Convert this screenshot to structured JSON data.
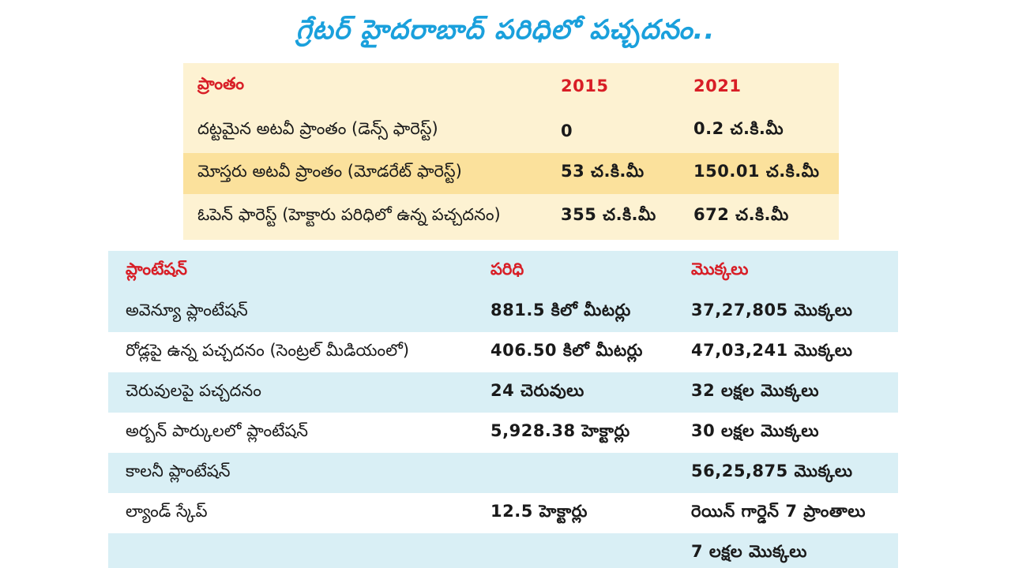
{
  "title": "గ్రేటర్ హైదరాబాద్ పరిధిలో పచ్చదనం..",
  "forest_table": {
    "headers": [
      "ప్రాంతం",
      "2015",
      "2021"
    ],
    "rows": [
      [
        "దట్టమైన అటవీ ప్రాంతం (డెన్స్ ఫారెస్ట్)",
        "0",
        "0.2 చ.కి.మీ"
      ],
      [
        "మోస్తరు అటవీ ప్రాంతం (మోడరేట్ ఫారెస్ట్)",
        "53 చ.కి.మీ",
        "150.01 చ.కి.మీ"
      ],
      [
        "ఓపెన్ ఫారెస్ట్ (హెక్టారు పరిధిలో ఉన్న పచ్చదనం)",
        "355 చ.కి.మీ",
        "672 చ.కి.మీ"
      ]
    ]
  },
  "plantation_table": {
    "headers": [
      "ప్లాంటేషన్",
      "పరిధి",
      "మొక్కలు"
    ],
    "rows": [
      [
        "అవెన్యూ ప్లాంటేషన్",
        "881.5 కిలో మీటర్లు",
        "37,27,805 మొక్కలు"
      ],
      [
        "రోడ్లపై ఉన్న పచ్చదనం (సెంట్రల్ మీడియంలో)",
        "406.50 కిలో మీటర్లు",
        "47,03,241 మొక్కలు"
      ],
      [
        "చెరువులపై పచ్చదనం",
        "24 చెరువులు",
        "32 లక్షల మొక్కలు"
      ],
      [
        "అర్బన్ పార్కులలో ప్లాంటేషన్",
        "5,928.38 హెక్టార్లు",
        "30 లక్షల మొక్కలు"
      ],
      [
        "కాలనీ ప్లాంటేషన్",
        "",
        "56,25,875 మొక్కలు"
      ],
      [
        "ల్యాండ్ స్కేప్",
        "12.5 హెక్టార్లు",
        "రెయిన్ గార్డెన్ 7 ప్రాంతాలు"
      ],
      [
        "",
        "",
        "7 లక్షల మొక్కలు"
      ]
    ]
  },
  "colors": {
    "title": "#1aa0dc",
    "header_red": "#d81e26",
    "forest_bg": "#fdf2d2",
    "forest_highlight": "#fbe19c",
    "plantation_blue": "#d9eff5"
  }
}
